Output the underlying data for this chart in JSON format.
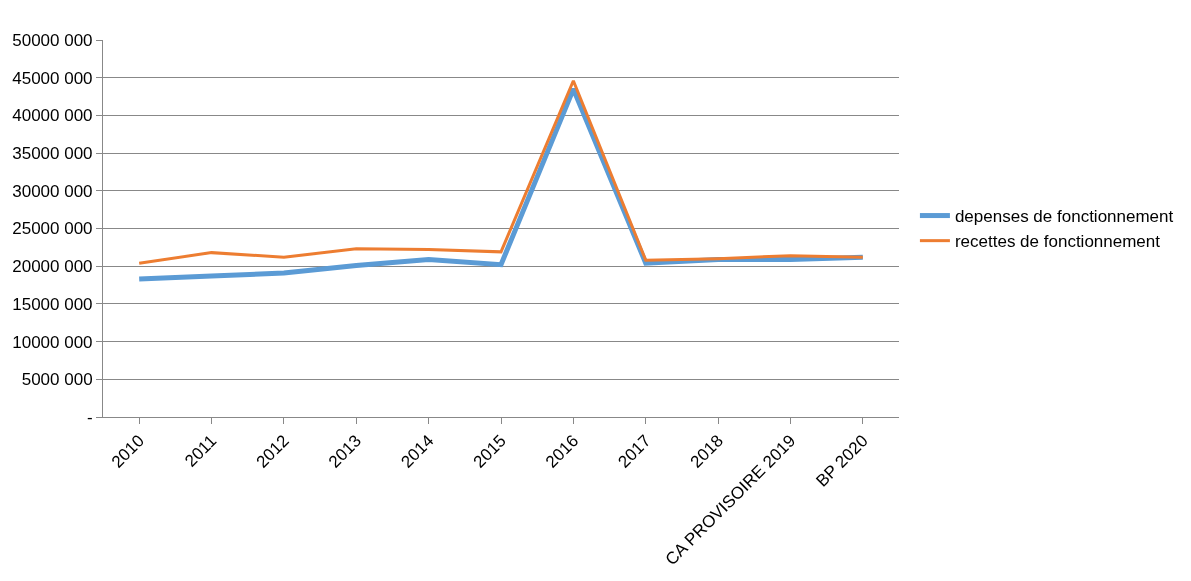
{
  "chart_data": {
    "type": "line",
    "categories": [
      "2010",
      "2011",
      "2012",
      "2013",
      "2014",
      "2015",
      "2016",
      "2017",
      "2018",
      "CA PROVISOIRE 2019",
      "BP 2020"
    ],
    "series": [
      {
        "name": "depenses de fonctionnement",
        "color": "#5b9bd5",
        "values": [
          18300000,
          18700000,
          19100000,
          20100000,
          20900000,
          20200000,
          43500000,
          20400000,
          20900000,
          20900000,
          21200000
        ]
      },
      {
        "name": "recettes de fonctionnement",
        "color": "#ed7d31",
        "values": [
          20400000,
          21800000,
          21200000,
          22300000,
          22200000,
          21900000,
          44600000,
          20800000,
          21000000,
          21400000,
          21200000
        ]
      }
    ],
    "ylim": [
      0,
      50000000
    ],
    "yticks": [
      {
        "value": 0,
        "label": "-"
      },
      {
        "value": 5000000,
        "label": "5000 000"
      },
      {
        "value": 10000000,
        "label": "10000 000"
      },
      {
        "value": 15000000,
        "label": "15000 000"
      },
      {
        "value": 20000000,
        "label": "20000 000"
      },
      {
        "value": 25000000,
        "label": "25000 000"
      },
      {
        "value": 30000000,
        "label": "30000 000"
      },
      {
        "value": 35000000,
        "label": "35000 000"
      },
      {
        "value": 40000000,
        "label": "40000 000"
      },
      {
        "value": 45000000,
        "label": "45000 000"
      },
      {
        "value": 50000000,
        "label": "50000 000"
      }
    ],
    "grid": "y",
    "legend": "right",
    "marker": "none",
    "line_style": "solid"
  }
}
